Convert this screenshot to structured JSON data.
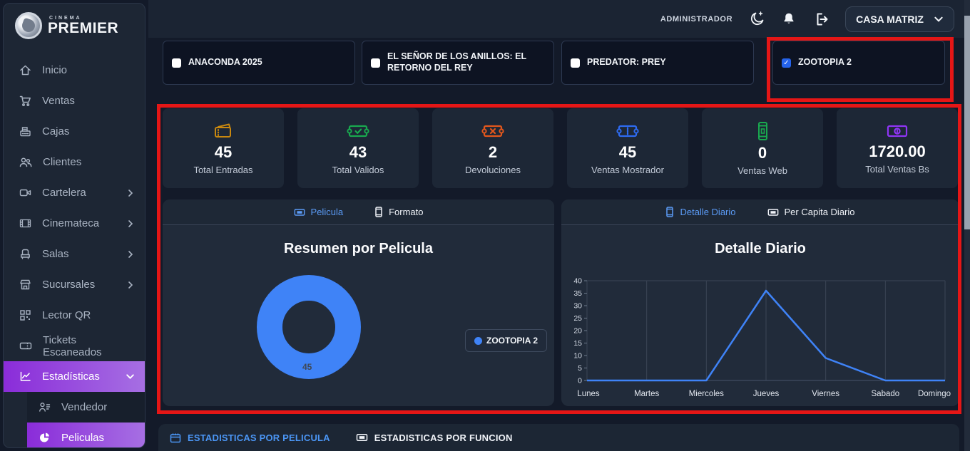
{
  "brand": {
    "name_top": "CINEMA",
    "name": "PREMIER"
  },
  "topbar": {
    "user_role": "ADMINISTRADOR",
    "branch_selector": "CASA MATRIZ",
    "icons": [
      "dark-mode-moon-icon",
      "notifications-bell-icon",
      "logout-icon"
    ]
  },
  "sidebar": {
    "items": [
      {
        "label": "Inicio",
        "icon": "home-icon",
        "chevron": false,
        "active": false
      },
      {
        "label": "Ventas",
        "icon": "cart-icon",
        "chevron": false,
        "active": false
      },
      {
        "label": "Cajas",
        "icon": "cash-register-icon",
        "chevron": false,
        "active": false
      },
      {
        "label": "Clientes",
        "icon": "users-icon",
        "chevron": false,
        "active": false
      },
      {
        "label": "Cartelera",
        "icon": "video-icon",
        "chevron": true,
        "active": false
      },
      {
        "label": "Cinemateca",
        "icon": "film-icon",
        "chevron": true,
        "active": false
      },
      {
        "label": "Salas",
        "icon": "seat-icon",
        "chevron": true,
        "active": false
      },
      {
        "label": "Sucursales",
        "icon": "store-icon",
        "chevron": true,
        "active": false
      },
      {
        "label": "Lector QR",
        "icon": "qr-icon",
        "chevron": false,
        "active": false
      },
      {
        "label": "Tickets Escaneados",
        "icon": "ticket-icon",
        "chevron": false,
        "active": false
      },
      {
        "label": "Estadísticas",
        "icon": "chart-line-icon",
        "chevron": true,
        "expanded": true,
        "active": true
      }
    ],
    "submenu": [
      {
        "label": "Vendedor",
        "icon": "person-lines-icon",
        "active": false
      },
      {
        "label": "Peliculas",
        "icon": "pie-chart-icon",
        "active": true
      }
    ]
  },
  "movie_filters": [
    {
      "label": "ANACONDA 2025",
      "checked": false
    },
    {
      "label": "EL SEÑOR DE LOS ANILLOS: EL RETORNO DEL REY",
      "checked": false
    },
    {
      "label": "PREDATOR: PREY",
      "checked": false
    },
    {
      "label": "ZOOTOPIA 2",
      "checked": true
    }
  ],
  "stats": [
    {
      "value": "45",
      "label": "Total Entradas",
      "icon": "ticket-stack-icon",
      "color": "#c9880f"
    },
    {
      "value": "43",
      "label": "Total Validos",
      "icon": "ticket-check-icon",
      "color": "#19a94f"
    },
    {
      "value": "2",
      "label": "Devoluciones",
      "icon": "ticket-x-icon",
      "color": "#e3571c"
    },
    {
      "value": "45",
      "label": "Ventas Mostrador",
      "icon": "ticket-icon",
      "color": "#2e6bf2"
    },
    {
      "value": "0",
      "label": "Ventas Web",
      "icon": "mobile-icon",
      "color": "#19a94f"
    },
    {
      "value": "1720.00",
      "label": "Total Ventas Bs",
      "icon": "money-bill-icon",
      "color": "#8f35f5"
    }
  ],
  "left_panel": {
    "tabs": [
      {
        "label": "Pelicula",
        "icon": "ticket-icon",
        "active": true
      },
      {
        "label": "Formato",
        "icon": "mobile-icon",
        "active": false
      }
    ]
  },
  "right_panel": {
    "tabs": [
      {
        "label": "Detalle Diario",
        "icon": "mobile-icon",
        "active": true
      },
      {
        "label": "Per Capita Diario",
        "icon": "ticket-icon",
        "active": false
      }
    ]
  },
  "bottom_tabs": [
    {
      "label": "ESTADISTICAS POR PELICULA",
      "icon": "calendar-icon",
      "active": true
    },
    {
      "label": "ESTADISTICAS POR FUNCION",
      "icon": "ticket-icon",
      "active": false
    }
  ],
  "chart_data": [
    {
      "type": "pie",
      "donut": true,
      "title": "Resumen por Pelicula",
      "labels": [
        "ZOOTOPIA 2"
      ],
      "values": [
        45
      ],
      "colors": [
        "#3f83f7"
      ],
      "data_label": "45",
      "legend_position": "right"
    },
    {
      "type": "line",
      "title": "Detalle Diario",
      "categories": [
        "Lunes",
        "Martes",
        "Miercoles",
        "Jueves",
        "Viernes",
        "Sabado",
        "Domingo"
      ],
      "values": [
        0,
        0,
        0,
        36,
        9,
        0,
        0
      ],
      "yticks": [
        0,
        5,
        10,
        15,
        20,
        25,
        30,
        35,
        40
      ],
      "ylim": [
        0,
        40
      ],
      "line_color": "#3f83f7",
      "grid": true,
      "legend_position": "none"
    }
  ],
  "colors": {
    "accent_blue": "#3f83f7",
    "active_tab_blue": "#5b9bf6",
    "purple_gradient_start": "#8a2cd9",
    "purple_gradient_end": "#a66fe3",
    "annotation_red": "#e51616"
  }
}
